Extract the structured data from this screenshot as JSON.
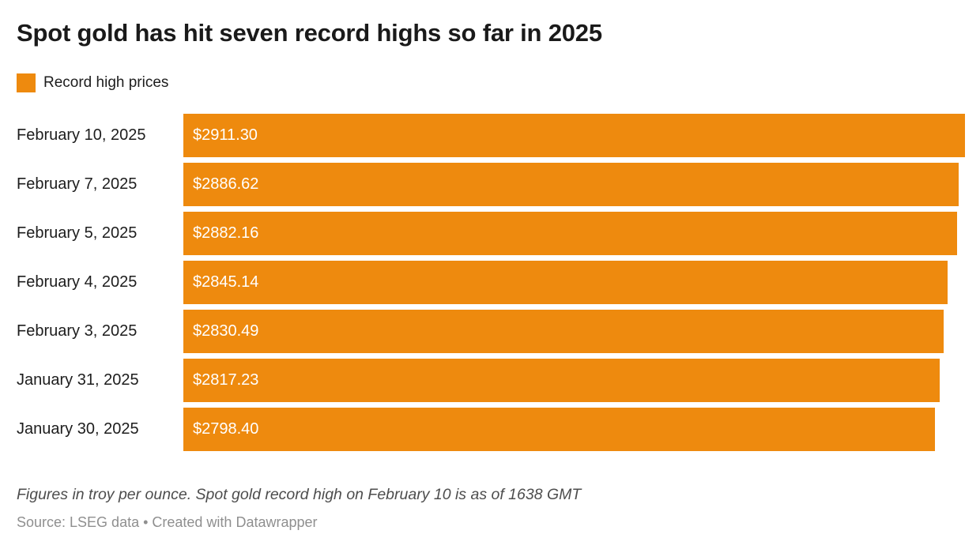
{
  "header": {
    "title": "Spot gold has hit seven record highs so far in 2025",
    "legend_label": "Record high prices"
  },
  "colors": {
    "background": "#ffffff",
    "bar": "#EE8A0E",
    "title_text": "#1a1a1a",
    "row_label_text": "#1d1d1d",
    "bar_value_text": "#ffffff",
    "note_text": "#4d4d4d",
    "source_text": "#8f8f8f"
  },
  "chart_data": {
    "type": "bar",
    "orientation": "horizontal",
    "title": "Spot gold has hit seven record highs so far in 2025",
    "legend": [
      "Record high prices"
    ],
    "legend_position": "top-left",
    "categories": [
      "February 10, 2025",
      "February 7, 2025",
      "February 5, 2025",
      "February 4, 2025",
      "February 3, 2025",
      "January 31, 2025",
      "January 30, 2025"
    ],
    "values": [
      2911.3,
      2886.62,
      2882.16,
      2845.14,
      2830.49,
      2817.23,
      2798.4
    ],
    "value_labels": [
      "$2911.30",
      "$2886.62",
      "$2882.16",
      "$2845.14",
      "$2830.49",
      "$2817.23",
      "$2798.40"
    ],
    "xlim": [
      0,
      2911.3
    ],
    "grid": false,
    "value_labels_inside_bars": true
  },
  "footer": {
    "note": "Figures in troy per ounce. Spot gold record high on February 10 is as of 1638 GMT",
    "source": "Source: LSEG data • Created with Datawrapper"
  }
}
